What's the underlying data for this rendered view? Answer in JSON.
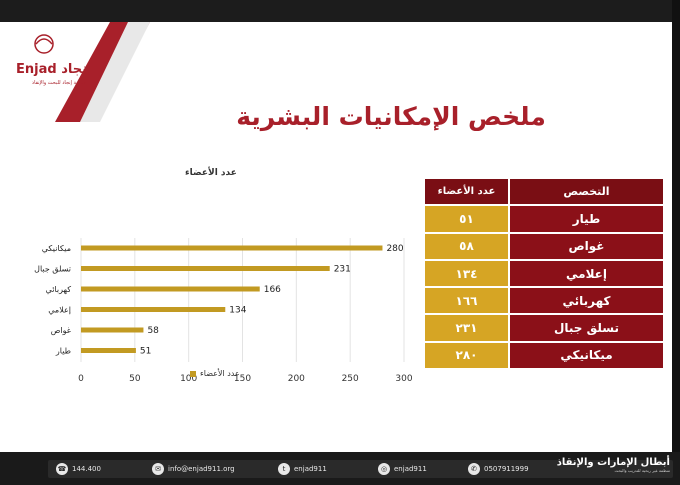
{
  "slide": {
    "title": "ملخص الإمكانيات البشرية",
    "logo_text": "Enjad إنجاد",
    "logo_sub": "جمعية إنجاد للبحث والإنقاذ"
  },
  "chart_data": {
    "type": "bar",
    "orientation": "horizontal",
    "title": "عدد الأعضاء",
    "categories": [
      "ميكانيكي",
      "تسلق جبال",
      "كهربائي",
      "إعلامي",
      "غواص",
      "طيار"
    ],
    "series": [
      {
        "name": "عدد الأعضاء",
        "values": [
          280,
          231,
          166,
          134,
          58,
          51
        ]
      }
    ],
    "xlim": [
      0,
      300
    ],
    "ticks": [
      "0",
      "50",
      "100",
      "150",
      "200",
      "250",
      "300"
    ],
    "legend": "bottom",
    "bar_color": "#c29a22"
  },
  "table": {
    "header_specialty": "التخصص",
    "header_count": "عدد الأعضاء",
    "rows": [
      {
        "name": "طيار",
        "count": "٥١"
      },
      {
        "name": "غواص",
        "count": "٥٨"
      },
      {
        "name": "إعلامي",
        "count": "١٣٤"
      },
      {
        "name": "كهربائي",
        "count": "١٦٦"
      },
      {
        "name": "تسلق جبال",
        "count": "٢٣١"
      },
      {
        "name": "ميكانيكي",
        "count": "٢٨٠"
      }
    ]
  },
  "footer": {
    "phone": "144.400",
    "email": "info@enjad911.org",
    "twitter": "enjad911",
    "instagram": "enjad911",
    "mobile": "0507911999",
    "org_name": "أبطال الإمارات والإنقاذ",
    "org_sub": "منظمة غير ربحية للتدريب والبحث"
  }
}
